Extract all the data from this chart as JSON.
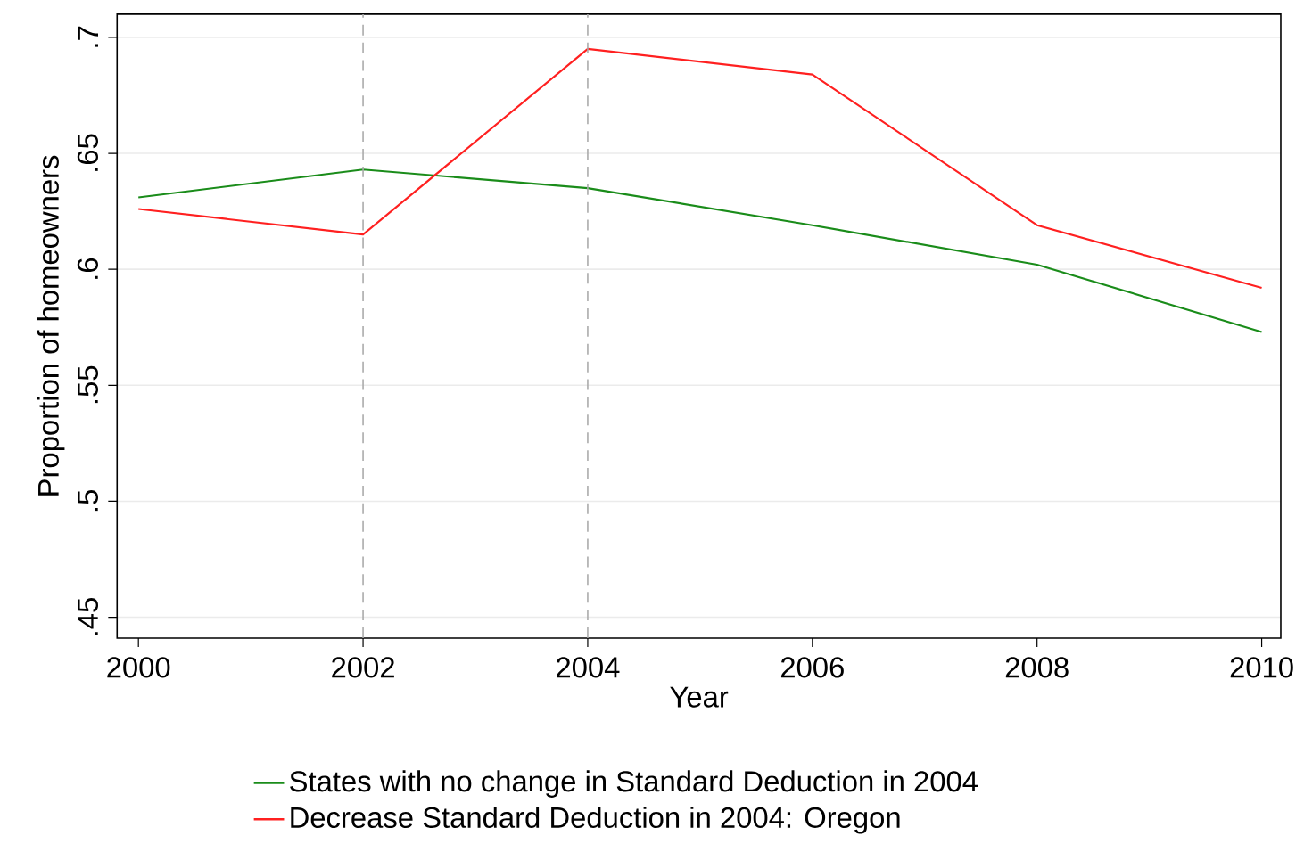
{
  "chart_data": {
    "type": "line",
    "xlabel": "Year",
    "ylabel": "Proportion of homeowners",
    "x": [
      2000,
      2002,
      2004,
      2006,
      2008,
      2010
    ],
    "series": [
      {
        "name": "States with no change in Standard Deduction in 2004",
        "color": "#1a8c1a",
        "values": [
          0.631,
          0.643,
          0.635,
          0.619,
          0.602,
          0.573
        ]
      },
      {
        "name": "Decrease Standard Deduction in 2004: Oregon",
        "color": "#ff2020",
        "values": [
          0.626,
          0.615,
          0.695,
          0.684,
          0.619,
          0.592
        ]
      }
    ],
    "xlim": [
      1999.81,
      2010.17
    ],
    "ylim": [
      0.441,
      0.71
    ],
    "xticks": [
      2000,
      2002,
      2004,
      2006,
      2008,
      2010
    ],
    "yticks": [
      {
        "value": 0.45,
        "label": ".45"
      },
      {
        "value": 0.5,
        "label": ".5"
      },
      {
        "value": 0.55,
        "label": ".55"
      },
      {
        "value": 0.6,
        "label": ".6"
      },
      {
        "value": 0.65,
        "label": ".65"
      },
      {
        "value": 0.7,
        "label": ".7"
      }
    ],
    "ref_lines": [
      {
        "axis": "x",
        "value": 2002,
        "color": "#aaaaaa",
        "line_style": "dashed"
      },
      {
        "axis": "x",
        "value": 2004,
        "color": "#aaaaaa",
        "line_style": "dashed"
      }
    ],
    "grid": "y",
    "legend": "bottom",
    "marker": "none",
    "line_style": "solid"
  }
}
